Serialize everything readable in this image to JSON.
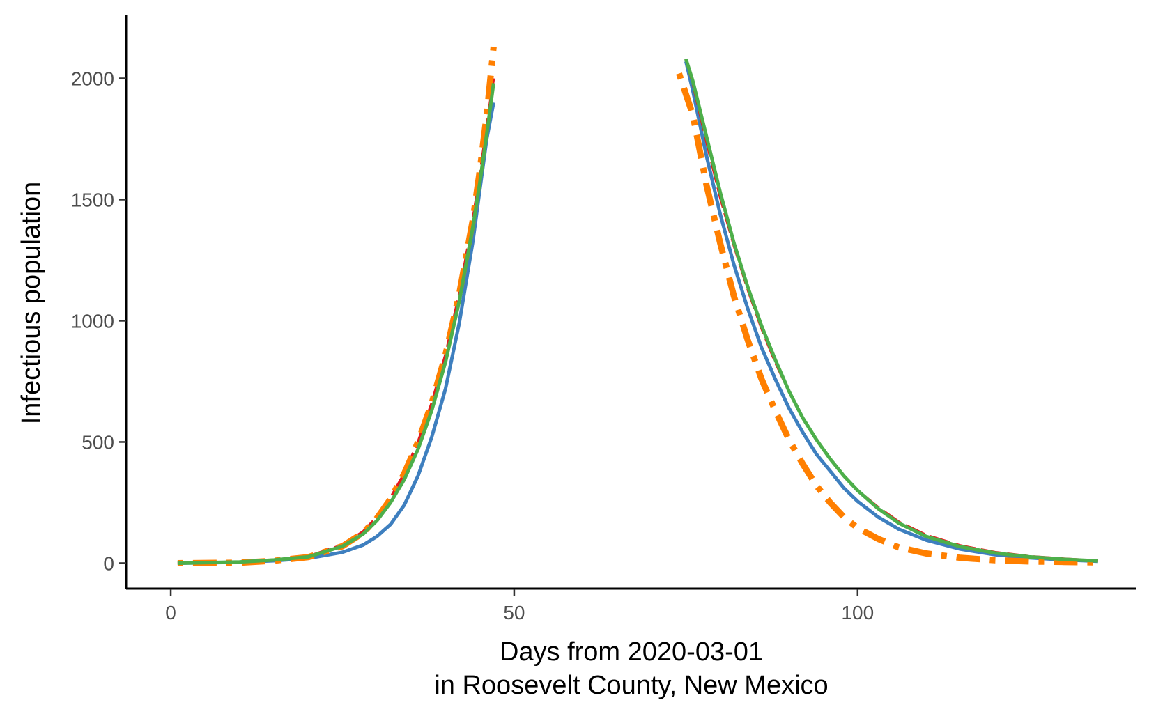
{
  "chart_data": {
    "type": "line",
    "xlabel_lines": [
      "Days from 2020-03-01",
      "in Roosevelt County, New Mexico"
    ],
    "ylabel": "Infectious population",
    "xlim": [
      -6.5,
      140.5
    ],
    "ylim": [
      -105,
      2260
    ],
    "x_ticks": [
      0,
      50,
      100
    ],
    "y_ticks": [
      0,
      500,
      1000,
      1500,
      2000
    ],
    "grid": false,
    "legend": "none",
    "series": [
      {
        "color": "#3e7fbf",
        "dash": "solid",
        "width": 5,
        "segments": [
          [
            [
              1,
              0
            ],
            [
              10,
              4
            ],
            [
              15,
              10
            ],
            [
              20,
              20
            ],
            [
              25,
              45
            ],
            [
              28,
              75
            ],
            [
              30,
              110
            ],
            [
              32,
              160
            ],
            [
              34,
              240
            ],
            [
              36,
              360
            ],
            [
              38,
              520
            ],
            [
              40,
              720
            ],
            [
              42,
              990
            ],
            [
              44,
              1330
            ],
            [
              45,
              1540
            ],
            [
              46,
              1750
            ],
            [
              47,
              1900
            ]
          ],
          [
            [
              75,
              2070
            ],
            [
              76,
              1950
            ],
            [
              78,
              1680
            ],
            [
              80,
              1440
            ],
            [
              82,
              1230
            ],
            [
              84,
              1050
            ],
            [
              86,
              890
            ],
            [
              88,
              760
            ],
            [
              90,
              640
            ],
            [
              92,
              540
            ],
            [
              94,
              450
            ],
            [
              96,
              380
            ],
            [
              98,
              310
            ],
            [
              100,
              255
            ],
            [
              103,
              190
            ],
            [
              106,
              140
            ],
            [
              110,
              95
            ],
            [
              115,
              58
            ],
            [
              120,
              35
            ],
            [
              125,
              22
            ],
            [
              130,
              14
            ],
            [
              135,
              8
            ]
          ]
        ]
      },
      {
        "color": "#e41a1c",
        "dash": "long-dash",
        "width": 4,
        "segments": [
          [
            [
              1,
              0
            ],
            [
              10,
              5
            ],
            [
              15,
              14
            ],
            [
              20,
              28
            ],
            [
              25,
              75
            ],
            [
              28,
              130
            ],
            [
              30,
              190
            ],
            [
              32,
              270
            ],
            [
              34,
              370
            ],
            [
              36,
              500
            ],
            [
              38,
              660
            ],
            [
              40,
              860
            ],
            [
              42,
              1110
            ],
            [
              44,
              1420
            ],
            [
              45,
              1600
            ],
            [
              46,
              1800
            ],
            [
              47,
              2000
            ]
          ],
          [
            [
              75,
              2080
            ],
            [
              76,
              1980
            ],
            [
              78,
              1740
            ],
            [
              80,
              1510
            ],
            [
              82,
              1310
            ],
            [
              84,
              1130
            ],
            [
              86,
              970
            ],
            [
              88,
              830
            ],
            [
              90,
              710
            ],
            [
              92,
              600
            ],
            [
              94,
              510
            ],
            [
              96,
              430
            ],
            [
              98,
              360
            ],
            [
              100,
              300
            ],
            [
              103,
              230
            ],
            [
              106,
              170
            ],
            [
              110,
              115
            ],
            [
              115,
              72
            ],
            [
              120,
              45
            ],
            [
              125,
              28
            ],
            [
              130,
              18
            ],
            [
              135,
              10
            ]
          ]
        ]
      },
      {
        "color": "#ff7f00",
        "dash": "dot-dash",
        "width": 9,
        "segments": [
          [
            [
              1,
              0
            ],
            [
              10,
              2
            ],
            [
              15,
              10
            ],
            [
              20,
              25
            ],
            [
              25,
              70
            ],
            [
              28,
              125
            ],
            [
              30,
              185
            ],
            [
              32,
              265
            ],
            [
              34,
              370
            ],
            [
              36,
              500
            ],
            [
              38,
              660
            ],
            [
              40,
              860
            ],
            [
              42,
              1110
            ],
            [
              44,
              1420
            ],
            [
              45,
              1620
            ],
            [
              46,
              1850
            ],
            [
              47,
              2130
            ]
          ],
          [
            [
              74,
              2020
            ],
            [
              76,
              1850
            ],
            [
              78,
              1560
            ],
            [
              80,
              1320
            ],
            [
              82,
              1100
            ],
            [
              84,
              920
            ],
            [
              86,
              760
            ],
            [
              88,
              630
            ],
            [
              90,
              510
            ],
            [
              92,
              410
            ],
            [
              94,
              320
            ],
            [
              96,
              250
            ],
            [
              98,
              190
            ],
            [
              100,
              145
            ],
            [
              103,
              100
            ],
            [
              106,
              65
            ],
            [
              110,
              40
            ],
            [
              115,
              22
            ],
            [
              120,
              12
            ],
            [
              125,
              7
            ],
            [
              130,
              5
            ],
            [
              135,
              3
            ]
          ]
        ]
      },
      {
        "color": "#4daf4a",
        "dash": "solid",
        "width": 5,
        "segments": [
          [
            [
              1,
              0
            ],
            [
              10,
              5
            ],
            [
              15,
              13
            ],
            [
              20,
              26
            ],
            [
              25,
              70
            ],
            [
              28,
              120
            ],
            [
              30,
              175
            ],
            [
              32,
              250
            ],
            [
              34,
              345
            ],
            [
              36,
              470
            ],
            [
              38,
              630
            ],
            [
              40,
              830
            ],
            [
              42,
              1080
            ],
            [
              44,
              1390
            ],
            [
              45,
              1570
            ],
            [
              46,
              1770
            ],
            [
              47,
              1980
            ]
          ],
          [
            [
              75,
              2080
            ],
            [
              76,
              1990
            ],
            [
              78,
              1760
            ],
            [
              80,
              1530
            ],
            [
              82,
              1320
            ],
            [
              84,
              1140
            ],
            [
              86,
              980
            ],
            [
              88,
              840
            ],
            [
              90,
              710
            ],
            [
              92,
              600
            ],
            [
              94,
              510
            ],
            [
              96,
              430
            ],
            [
              98,
              360
            ],
            [
              100,
              300
            ],
            [
              103,
              225
            ],
            [
              106,
              165
            ],
            [
              110,
              110
            ],
            [
              115,
              68
            ],
            [
              120,
              42
            ],
            [
              125,
              26
            ],
            [
              130,
              16
            ],
            [
              135,
              9
            ]
          ]
        ]
      }
    ]
  }
}
